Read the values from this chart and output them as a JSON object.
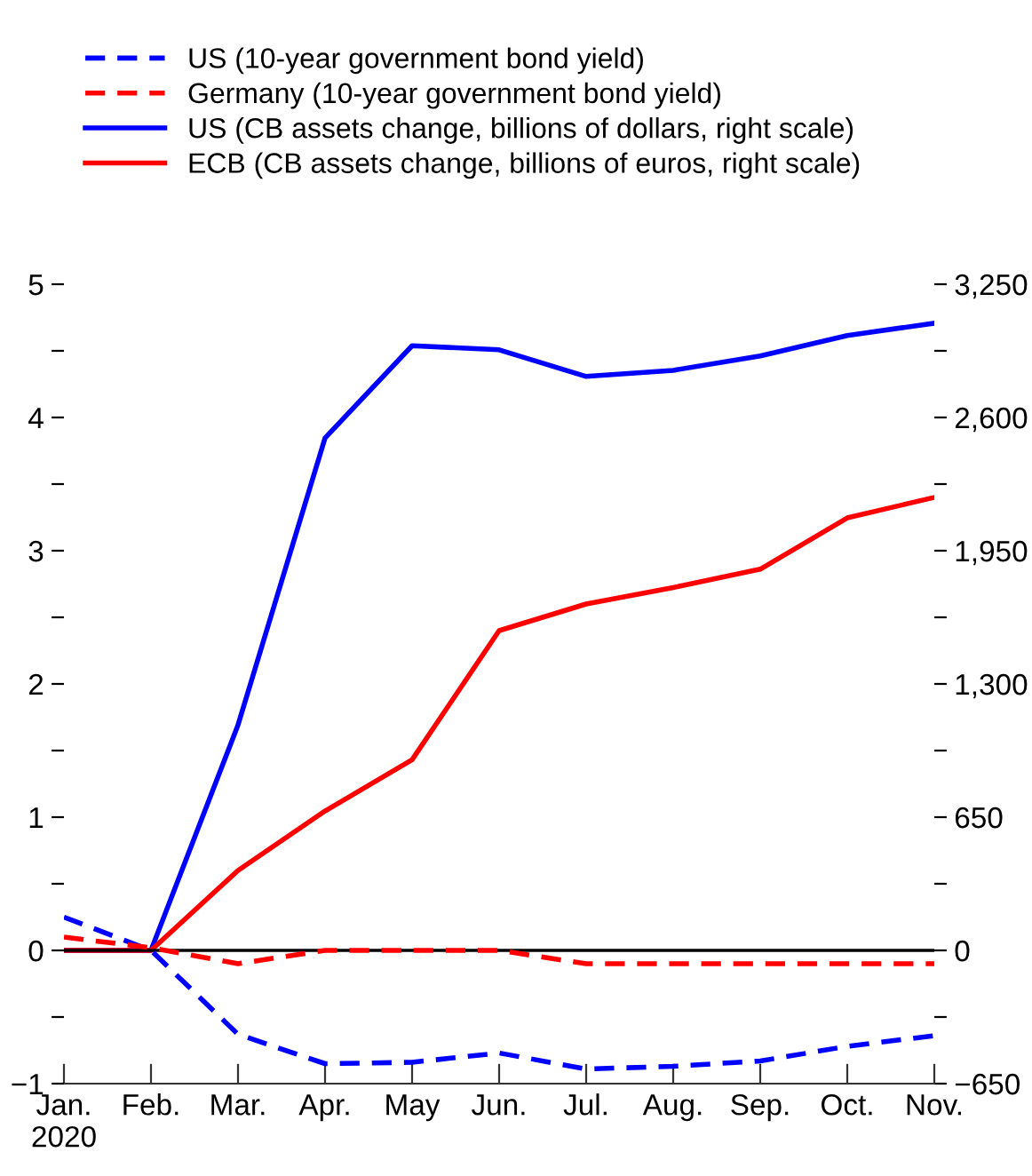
{
  "chart_data": {
    "type": "line",
    "categories": [
      "Jan.\n2020",
      "Feb.",
      "Mar.",
      "Apr.",
      "May",
      "Jun.",
      "Jul.",
      "Aug.",
      "Sep.",
      "Oct.",
      "Nov."
    ],
    "series": [
      {
        "name": "US (10-year government bond yield)",
        "color": "#0000ff",
        "line_style": "dashed",
        "values": [
          0.25,
          0,
          -0.63,
          -0.85,
          -0.84,
          -0.77,
          -0.89,
          -0.87,
          -0.83,
          -0.72,
          -0.64
        ]
      },
      {
        "name": "Germany (10-year government bond yield)",
        "color": "#ff0000",
        "line_style": "dashed",
        "values": [
          0.1,
          0.02,
          -0.1,
          0,
          0,
          0,
          -0.1,
          -0.1,
          -0.1,
          -0.1,
          -0.1
        ]
      },
      {
        "name": "US (CB assets change, billions of dollars, right scale)",
        "color": "#0000ff",
        "line_style": "solid",
        "axis": "y2",
        "values": [
          0,
          0,
          1100,
          2500,
          2950,
          2930,
          2800,
          2830,
          2900,
          3000,
          3060
        ]
      },
      {
        "name": "ECB (CB assets change, billions of euros, right scale)",
        "color": "#ff0000",
        "line_style": "solid",
        "axis": "y2",
        "values": [
          0,
          0,
          390,
          680,
          930,
          1560,
          1690,
          1770,
          1860,
          2110,
          2210
        ]
      }
    ],
    "ylim": [
      -1,
      5
    ],
    "yticks": [
      {
        "value": -1,
        "label": "−1"
      },
      {
        "value": -0.5,
        "label": null
      },
      0,
      {
        "value": 0.5,
        "label": null
      },
      1,
      {
        "value": 1.5,
        "label": null
      },
      2,
      {
        "value": 2.5,
        "label": null
      },
      3,
      {
        "value": 3.5,
        "label": null
      },
      4,
      {
        "value": 4.5,
        "label": null
      },
      5
    ],
    "y2lim": [
      -650,
      3250
    ],
    "y2ticks": [
      {
        "value": -650,
        "label": "−650"
      },
      {
        "value": -325,
        "label": null
      },
      0,
      {
        "value": 325,
        "label": null
      },
      650,
      {
        "value": 975,
        "label": null
      },
      {
        "value": 1300,
        "label": "1,300"
      },
      {
        "value": 1625,
        "label": null
      },
      {
        "value": 1950,
        "label": "1,950"
      },
      {
        "value": 2275,
        "label": null
      },
      {
        "value": 2600,
        "label": "2,600"
      },
      {
        "value": 2925,
        "label": null
      },
      {
        "value": 3250,
        "label": "3,250"
      }
    ],
    "ref_lines": [
      {
        "axis": "y",
        "value": 0,
        "color": "#000000"
      }
    ],
    "legend": "top",
    "grid": false
  }
}
